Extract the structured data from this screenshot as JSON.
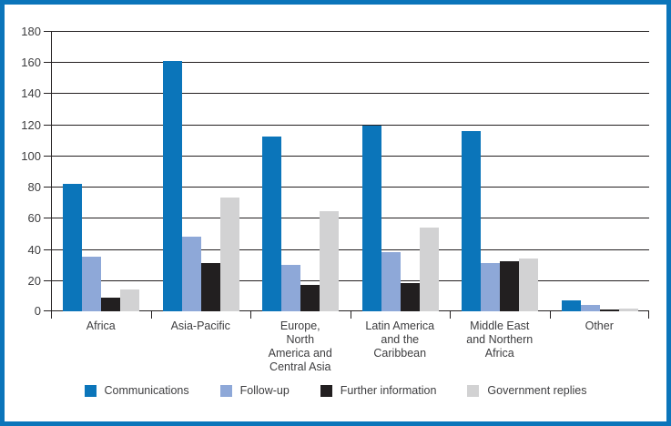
{
  "chart": {
    "frame_border_color": "#0b75ba",
    "background_color": "#ffffff",
    "grid_color": "#231f20",
    "text_color": "#3d3d3f"
  },
  "chart_data": {
    "type": "bar",
    "title": "",
    "xlabel": "",
    "ylabel": "",
    "ylim": [
      0,
      180
    ],
    "ytick_step": 20,
    "grid": true,
    "legend_position": "bottom",
    "categories": [
      "Africa",
      "Asia-Pacific",
      "Europe, North America and Central Asia",
      "Latin America and the Caribbean",
      "Middle East and Northern Africa",
      "Other"
    ],
    "tick_labels": [
      "Africa",
      "Asia-Pacific",
      "Europe,\nNorth\nAmerica and\nCentral Asia",
      "Latin America\nand the\nCaribbean",
      "Middle East\nand Northern\nAfrica",
      "Other"
    ],
    "series": [
      {
        "name": "Communications",
        "color": "#0b75ba",
        "values": [
          82,
          161,
          112,
          119,
          116,
          7
        ]
      },
      {
        "name": "Follow-up",
        "color": "#8ea8d8",
        "values": [
          35,
          48,
          30,
          38,
          31,
          4
        ]
      },
      {
        "name": "Further information",
        "color": "#221f20",
        "values": [
          9,
          31,
          17,
          18,
          32,
          1
        ]
      },
      {
        "name": "Government replies",
        "color": "#d2d2d3",
        "values": [
          14,
          73,
          64,
          54,
          34,
          2
        ]
      }
    ]
  }
}
